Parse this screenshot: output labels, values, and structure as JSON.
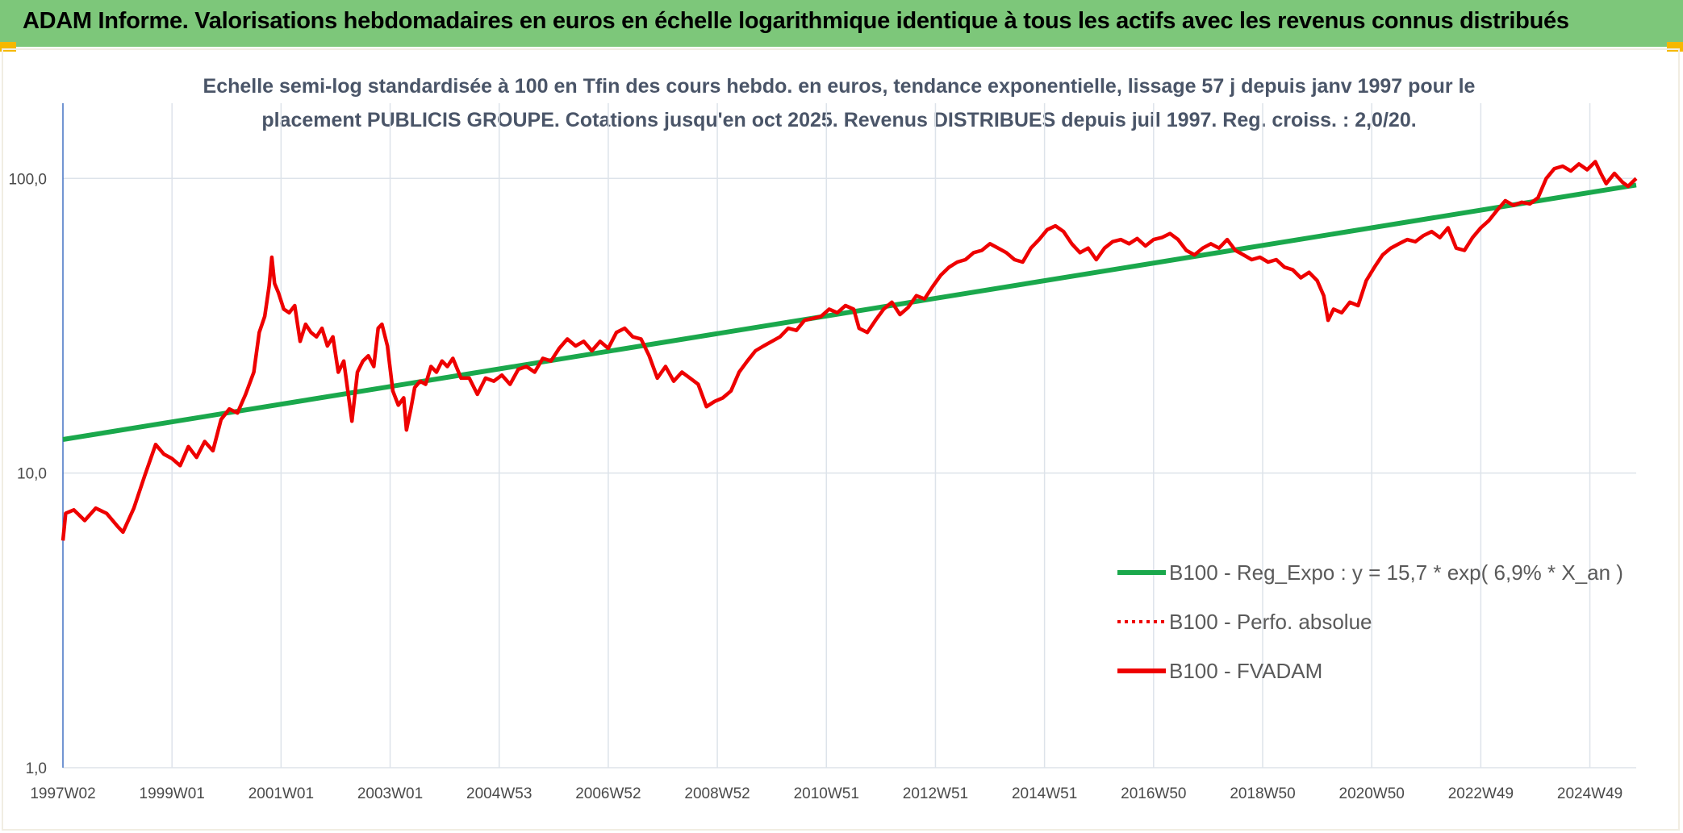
{
  "header": {
    "title": "ADAM Informe. Valorisations hebdomadaires en euros en échelle logarithmique identique à tous les actifs avec les revenus connus distribués"
  },
  "colors": {
    "banner": "#7dc77a",
    "corner_accent": "#f5b800",
    "trend_line": "#1aa84c",
    "series_red": "#ee0000",
    "axis_line": "#4472c4",
    "grid": "#dde3ea"
  },
  "chart_data": {
    "type": "line",
    "title_line1": "Echelle semi-log standardisée à 100 en Tfin des cours hebdo. en euros, tendance exponentielle, lissage 57 j depuis janv 1997 pour le",
    "title_line2": "placement PUBLICIS GROUPE. Cotations jusqu'en oct 2025. Revenus DISTRIBUES depuis juil 1997. Reg. croiss. : 2,0/20.",
    "y_scale": "log",
    "ylim": [
      1,
      180
    ],
    "xlim": [
      1997.0,
      2025.85
    ],
    "y_ticks": [
      {
        "value": 1,
        "label": "1,0"
      },
      {
        "value": 10,
        "label": "10,0"
      },
      {
        "value": 100,
        "label": "100,0"
      }
    ],
    "x_ticks": [
      {
        "x": 1997.0,
        "label": "1997W02"
      },
      {
        "x": 1999.0,
        "label": "1999W01"
      },
      {
        "x": 2001.0,
        "label": "2001W01"
      },
      {
        "x": 2003.0,
        "label": "2003W01"
      },
      {
        "x": 2005.0,
        "label": "2004W53"
      },
      {
        "x": 2007.0,
        "label": "2006W52"
      },
      {
        "x": 2009.0,
        "label": "2008W52"
      },
      {
        "x": 2011.0,
        "label": "2010W51"
      },
      {
        "x": 2013.0,
        "label": "2012W51"
      },
      {
        "x": 2015.0,
        "label": "2014W51"
      },
      {
        "x": 2017.0,
        "label": "2016W50"
      },
      {
        "x": 2019.0,
        "label": "2018W50"
      },
      {
        "x": 2021.0,
        "label": "2020W50"
      },
      {
        "x": 2023.0,
        "label": "2022W49"
      },
      {
        "x": 2025.0,
        "label": "2024W49"
      }
    ],
    "grid": true,
    "legend_position": "bottom-right",
    "series": [
      {
        "name": "B100 - Reg_Expo : y = 15,7 * exp( 6,9% * X_an )",
        "style": "solid",
        "color": "#1aa84c",
        "points": [
          [
            1997.0,
            13.0
          ],
          [
            2025.85,
            95.0
          ]
        ]
      },
      {
        "name": "B100 - Perfo. absolue",
        "style": "dotted",
        "color": "#ee0000",
        "points": []
      },
      {
        "name": "B100 - FVADAM",
        "style": "solid",
        "color": "#ee0000",
        "points": [
          [
            1997.0,
            5.9
          ],
          [
            1997.05,
            7.3
          ],
          [
            1997.2,
            7.5
          ],
          [
            1997.4,
            6.9
          ],
          [
            1997.6,
            7.6
          ],
          [
            1997.8,
            7.3
          ],
          [
            1998.0,
            6.6
          ],
          [
            1998.1,
            6.3
          ],
          [
            1998.3,
            7.6
          ],
          [
            1998.5,
            9.8
          ],
          [
            1998.7,
            12.5
          ],
          [
            1998.85,
            11.6
          ],
          [
            1999.0,
            11.2
          ],
          [
            1999.15,
            10.6
          ],
          [
            1999.3,
            12.3
          ],
          [
            1999.45,
            11.3
          ],
          [
            1999.6,
            12.8
          ],
          [
            1999.75,
            11.9
          ],
          [
            1999.9,
            15.2
          ],
          [
            2000.05,
            16.5
          ],
          [
            2000.2,
            16.0
          ],
          [
            2000.35,
            18.5
          ],
          [
            2000.5,
            22.0
          ],
          [
            2000.6,
            30.0
          ],
          [
            2000.7,
            34.0
          ],
          [
            2000.78,
            43.0
          ],
          [
            2000.83,
            54.0
          ],
          [
            2000.88,
            44.0
          ],
          [
            2000.95,
            41.0
          ],
          [
            2001.05,
            36.0
          ],
          [
            2001.15,
            35.0
          ],
          [
            2001.25,
            37.0
          ],
          [
            2001.35,
            28.0
          ],
          [
            2001.45,
            32.0
          ],
          [
            2001.55,
            30.0
          ],
          [
            2001.65,
            29.0
          ],
          [
            2001.75,
            31.0
          ],
          [
            2001.85,
            27.0
          ],
          [
            2001.95,
            29.0
          ],
          [
            2002.05,
            22.0
          ],
          [
            2002.15,
            24.0
          ],
          [
            2002.3,
            15.0
          ],
          [
            2002.4,
            22.0
          ],
          [
            2002.5,
            24.0
          ],
          [
            2002.6,
            25.0
          ],
          [
            2002.7,
            23.0
          ],
          [
            2002.78,
            31.0
          ],
          [
            2002.85,
            32.0
          ],
          [
            2002.95,
            27.0
          ],
          [
            2003.05,
            19.0
          ],
          [
            2003.15,
            17.0
          ],
          [
            2003.25,
            18.0
          ],
          [
            2003.3,
            14.0
          ],
          [
            2003.38,
            16.5
          ],
          [
            2003.45,
            19.5
          ],
          [
            2003.55,
            20.5
          ],
          [
            2003.65,
            20.0
          ],
          [
            2003.75,
            23.0
          ],
          [
            2003.85,
            22.0
          ],
          [
            2003.95,
            24.0
          ],
          [
            2004.05,
            23.0
          ],
          [
            2004.15,
            24.5
          ],
          [
            2004.3,
            21.0
          ],
          [
            2004.45,
            21.0
          ],
          [
            2004.6,
            18.5
          ],
          [
            2004.75,
            21.0
          ],
          [
            2004.9,
            20.5
          ],
          [
            2005.05,
            21.5
          ],
          [
            2005.2,
            20.0
          ],
          [
            2005.35,
            22.5
          ],
          [
            2005.5,
            23.0
          ],
          [
            2005.65,
            22.0
          ],
          [
            2005.8,
            24.5
          ],
          [
            2005.95,
            24.0
          ],
          [
            2006.1,
            26.5
          ],
          [
            2006.25,
            28.5
          ],
          [
            2006.4,
            27.0
          ],
          [
            2006.55,
            28.0
          ],
          [
            2006.7,
            26.0
          ],
          [
            2006.85,
            28.0
          ],
          [
            2007.0,
            26.5
          ],
          [
            2007.15,
            30.0
          ],
          [
            2007.3,
            31.0
          ],
          [
            2007.45,
            29.0
          ],
          [
            2007.6,
            28.5
          ],
          [
            2007.75,
            25.0
          ],
          [
            2007.9,
            21.0
          ],
          [
            2008.05,
            23.0
          ],
          [
            2008.2,
            20.5
          ],
          [
            2008.35,
            22.0
          ],
          [
            2008.5,
            21.0
          ],
          [
            2008.65,
            20.0
          ],
          [
            2008.8,
            16.8
          ],
          [
            2008.95,
            17.5
          ],
          [
            2009.1,
            18.0
          ],
          [
            2009.25,
            19.0
          ],
          [
            2009.4,
            22.0
          ],
          [
            2009.55,
            24.0
          ],
          [
            2009.7,
            26.0
          ],
          [
            2009.85,
            27.0
          ],
          [
            2010.0,
            28.0
          ],
          [
            2010.15,
            29.0
          ],
          [
            2010.3,
            31.0
          ],
          [
            2010.45,
            30.5
          ],
          [
            2010.6,
            33.0
          ],
          [
            2010.75,
            33.5
          ],
          [
            2010.9,
            34.0
          ],
          [
            2011.05,
            36.0
          ],
          [
            2011.2,
            35.0
          ],
          [
            2011.35,
            37.0
          ],
          [
            2011.5,
            36.0
          ],
          [
            2011.6,
            31.0
          ],
          [
            2011.75,
            30.0
          ],
          [
            2011.9,
            33.0
          ],
          [
            2012.05,
            36.0
          ],
          [
            2012.2,
            38.0
          ],
          [
            2012.35,
            34.5
          ],
          [
            2012.5,
            36.5
          ],
          [
            2012.65,
            40.0
          ],
          [
            2012.8,
            39.0
          ],
          [
            2012.95,
            43.0
          ],
          [
            2013.1,
            47.0
          ],
          [
            2013.25,
            50.0
          ],
          [
            2013.4,
            52.0
          ],
          [
            2013.55,
            53.0
          ],
          [
            2013.7,
            56.0
          ],
          [
            2013.85,
            57.0
          ],
          [
            2014.0,
            60.0
          ],
          [
            2014.15,
            58.0
          ],
          [
            2014.3,
            56.0
          ],
          [
            2014.45,
            53.0
          ],
          [
            2014.6,
            52.0
          ],
          [
            2014.75,
            58.0
          ],
          [
            2014.9,
            62.0
          ],
          [
            2015.05,
            67.0
          ],
          [
            2015.2,
            69.0
          ],
          [
            2015.35,
            66.0
          ],
          [
            2015.5,
            60.0
          ],
          [
            2015.65,
            56.0
          ],
          [
            2015.8,
            58.0
          ],
          [
            2015.95,
            53.0
          ],
          [
            2016.1,
            58.0
          ],
          [
            2016.25,
            61.0
          ],
          [
            2016.4,
            62.0
          ],
          [
            2016.55,
            60.0
          ],
          [
            2016.7,
            62.5
          ],
          [
            2016.85,
            59.0
          ],
          [
            2017.0,
            62.0
          ],
          [
            2017.15,
            63.0
          ],
          [
            2017.3,
            65.0
          ],
          [
            2017.45,
            62.0
          ],
          [
            2017.6,
            57.0
          ],
          [
            2017.75,
            55.0
          ],
          [
            2017.9,
            58.0
          ],
          [
            2018.05,
            60.0
          ],
          [
            2018.2,
            58.0
          ],
          [
            2018.35,
            62.0
          ],
          [
            2018.5,
            57.0
          ],
          [
            2018.65,
            55.0
          ],
          [
            2018.8,
            53.0
          ],
          [
            2018.95,
            54.0
          ],
          [
            2019.1,
            52.0
          ],
          [
            2019.25,
            53.0
          ],
          [
            2019.4,
            50.0
          ],
          [
            2019.55,
            49.0
          ],
          [
            2019.7,
            46.0
          ],
          [
            2019.85,
            48.0
          ],
          [
            2020.0,
            45.0
          ],
          [
            2020.12,
            40.0
          ],
          [
            2020.2,
            33.0
          ],
          [
            2020.3,
            36.0
          ],
          [
            2020.45,
            35.0
          ],
          [
            2020.6,
            38.0
          ],
          [
            2020.75,
            37.0
          ],
          [
            2020.9,
            45.0
          ],
          [
            2021.05,
            50.0
          ],
          [
            2021.2,
            55.0
          ],
          [
            2021.35,
            58.0
          ],
          [
            2021.5,
            60.0
          ],
          [
            2021.65,
            62.0
          ],
          [
            2021.8,
            61.0
          ],
          [
            2021.95,
            64.0
          ],
          [
            2022.1,
            66.0
          ],
          [
            2022.25,
            63.0
          ],
          [
            2022.4,
            68.0
          ],
          [
            2022.55,
            58.0
          ],
          [
            2022.7,
            57.0
          ],
          [
            2022.85,
            63.0
          ],
          [
            2023.0,
            68.0
          ],
          [
            2023.15,
            72.0
          ],
          [
            2023.3,
            78.0
          ],
          [
            2023.45,
            84.0
          ],
          [
            2023.6,
            81.0
          ],
          [
            2023.75,
            83.0
          ],
          [
            2023.9,
            82.0
          ],
          [
            2024.05,
            86.0
          ],
          [
            2024.2,
            100.0
          ],
          [
            2024.35,
            108.0
          ],
          [
            2024.5,
            110.0
          ],
          [
            2024.65,
            106.0
          ],
          [
            2024.8,
            112.0
          ],
          [
            2024.95,
            107.0
          ],
          [
            2025.1,
            114.0
          ],
          [
            2025.2,
            104.0
          ],
          [
            2025.3,
            96.0
          ],
          [
            2025.45,
            104.0
          ],
          [
            2025.6,
            97.0
          ],
          [
            2025.7,
            94.0
          ],
          [
            2025.8,
            98.0
          ],
          [
            2025.85,
            100.0
          ]
        ]
      }
    ]
  }
}
